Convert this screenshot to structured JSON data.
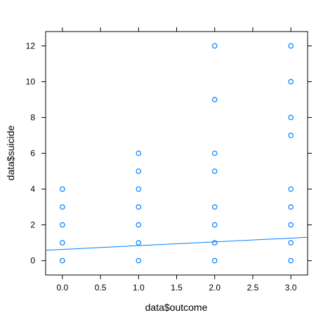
{
  "chart_data": {
    "type": "scatter",
    "xlabel": "data$outcome",
    "ylabel": "data$suicide",
    "xlim": [
      -0.22,
      3.22
    ],
    "ylim": [
      -0.8,
      12.8
    ],
    "x_ticks": [
      0.0,
      0.5,
      1.0,
      1.5,
      2.0,
      2.5,
      3.0
    ],
    "x_tick_labels": [
      "0.0",
      "0.5",
      "1.0",
      "1.5",
      "2.0",
      "2.5",
      "3.0"
    ],
    "y_ticks": [
      0,
      2,
      4,
      6,
      8,
      10,
      12
    ],
    "y_tick_labels": [
      "0",
      "2",
      "4",
      "6",
      "8",
      "10",
      "12"
    ],
    "grid": false,
    "point_color": "#0080ff",
    "line_color": "#0080ff",
    "points": [
      {
        "x": 0,
        "y": 0
      },
      {
        "x": 0,
        "y": 1
      },
      {
        "x": 0,
        "y": 2
      },
      {
        "x": 0,
        "y": 3
      },
      {
        "x": 0,
        "y": 4
      },
      {
        "x": 1,
        "y": 0
      },
      {
        "x": 1,
        "y": 1
      },
      {
        "x": 1,
        "y": 2
      },
      {
        "x": 1,
        "y": 3
      },
      {
        "x": 1,
        "y": 4
      },
      {
        "x": 1,
        "y": 5
      },
      {
        "x": 1,
        "y": 6
      },
      {
        "x": 2,
        "y": 0
      },
      {
        "x": 2,
        "y": 1
      },
      {
        "x": 2,
        "y": 2
      },
      {
        "x": 2,
        "y": 3
      },
      {
        "x": 2,
        "y": 5
      },
      {
        "x": 2,
        "y": 6
      },
      {
        "x": 2,
        "y": 9
      },
      {
        "x": 2,
        "y": 12
      },
      {
        "x": 3,
        "y": 0
      },
      {
        "x": 3,
        "y": 1
      },
      {
        "x": 3,
        "y": 2
      },
      {
        "x": 3,
        "y": 3
      },
      {
        "x": 3,
        "y": 4
      },
      {
        "x": 3,
        "y": 7
      },
      {
        "x": 3,
        "y": 8
      },
      {
        "x": 3,
        "y": 10
      },
      {
        "x": 3,
        "y": 12
      }
    ],
    "regression_line": {
      "intercept": 0.63,
      "slope": 0.21
    }
  }
}
